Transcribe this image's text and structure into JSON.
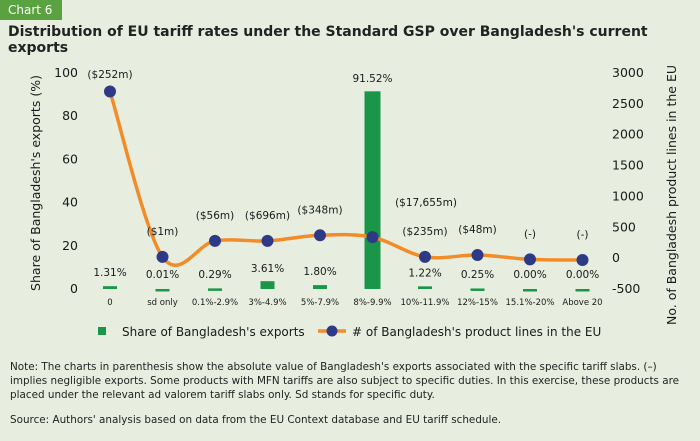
{
  "header": {
    "tab_label": "Chart 6",
    "title": "Distribution of EU tariff rates under the Standard GSP over Bangladesh's current exports"
  },
  "chart_data": {
    "type": "bar+line",
    "categories": [
      "0",
      "sd only",
      "0.1%-2.9%",
      "3%-4.9%",
      "5%-7.9%",
      "8%-9.9%",
      "10%-11.9%",
      "12%-15%",
      "15.1%-20%",
      "Above 20"
    ],
    "series": [
      {
        "name": "Share of Bangladesh's exports",
        "type": "bar",
        "axis": "left",
        "color": "#1a9648",
        "values": [
          1.31,
          0.01,
          0.29,
          3.61,
          1.8,
          91.52,
          1.22,
          0.25,
          0.0,
          0.0
        ],
        "labels": [
          "1.31%",
          "0.01%",
          "0.29%",
          "3.61%",
          "1.80%",
          "91.52%",
          "1.22%",
          "0.25%",
          "0.00%",
          "0.00%"
        ]
      },
      {
        "name": "# of Bangladesh's product lines in the EU",
        "type": "line",
        "axis": "right",
        "color": "#f28c28",
        "marker_color": "#2e3a86",
        "values": [
          2700,
          20,
          280,
          280,
          370,
          340,
          20,
          50,
          -20,
          -30
        ],
        "labels": [
          "($252m)",
          "($1m)",
          "($56m)",
          "($696m)",
          "($348m)",
          "",
          "($235m)",
          "($48m)",
          "(-)",
          "(-)"
        ]
      }
    ],
    "floating_annotations": [
      "($17,655m)"
    ],
    "left_axis": {
      "label": "Share of Bangladesh's exports (%)",
      "ticks": [
        0,
        20,
        40,
        60,
        80,
        100
      ],
      "range": [
        0,
        100
      ]
    },
    "right_axis": {
      "label": "No. of Bangladesh product lines in the EU",
      "ticks": [
        -500,
        0,
        500,
        1000,
        1500,
        2000,
        2500,
        3000
      ],
      "range": [
        -500,
        3000
      ]
    },
    "grid": false,
    "legend_position": "bottom"
  },
  "footer": {
    "note": "Note: The charts in parenthesis show the absolute value of Bangladesh's exports associated with the specific tariff slabs. (–) implies negligible exports.  Some products with MFN tariffs are also subject to specific duties. In this exercise, these products are placed under the relevant ad valorem tariff slabs only. Sd stands for specific duty.",
    "source": "Source: Authors' analysis based on data from the EU Context database and EU tariff schedule."
  }
}
